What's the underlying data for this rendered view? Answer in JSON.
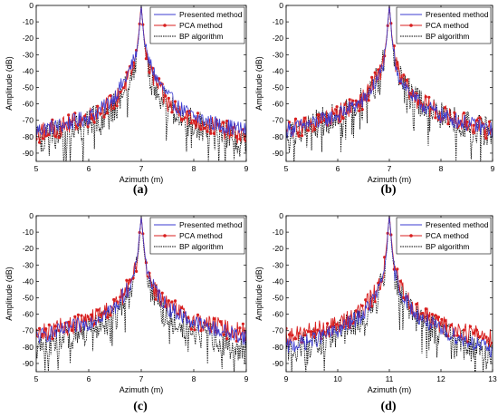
{
  "series_styles": {
    "presented": {
      "color": "#3b3bd1"
    },
    "pca": {
      "color": "#d81f1f"
    },
    "bp": {
      "color": "#000000"
    }
  },
  "chart_data": [
    {
      "panel_label": "(a)",
      "type": "line",
      "xlabel": "Azimuth (m)",
      "ylabel": "Amplitude (dB)",
      "xlim": [
        5,
        9
      ],
      "ylim": [
        -95,
        0
      ],
      "xticks": [
        5,
        6,
        7,
        8,
        9
      ],
      "yticks": [
        0,
        -10,
        -20,
        -30,
        -40,
        -50,
        -60,
        -70,
        -80,
        -90
      ],
      "legend_position": "top-right",
      "peak": 7,
      "series": [
        {
          "name": "Presented method",
          "key": "presented",
          "x": [
            5.0,
            5.5,
            6.0,
            6.3,
            6.5,
            6.7,
            6.8,
            6.9,
            6.95,
            7.0,
            7.05,
            7.1,
            7.2,
            7.3,
            7.5,
            7.7,
            8.0,
            8.5,
            9.0
          ],
          "y": [
            -76,
            -73,
            -68,
            -62,
            -55,
            -45,
            -38,
            -30,
            -20,
            0,
            -20,
            -30,
            -38,
            -45,
            -55,
            -62,
            -68,
            -73,
            -76
          ]
        },
        {
          "name": "PCA method",
          "key": "pca",
          "x": [
            5.0,
            5.5,
            6.0,
            6.5,
            6.8,
            6.9,
            6.95,
            7.0,
            7.05,
            7.1,
            7.2,
            7.5,
            8.0,
            8.5,
            9.0
          ],
          "y": [
            -78,
            -74,
            -68,
            -58,
            -42,
            -32,
            -18,
            0,
            -18,
            -32,
            -42,
            -60,
            -70,
            -75,
            -80
          ]
        },
        {
          "name": "BP algorithm",
          "key": "bp",
          "x": [
            5.0,
            5.5,
            6.0,
            6.5,
            6.8,
            6.9,
            6.95,
            7.0,
            7.05,
            7.1,
            7.2,
            7.5,
            8.0,
            8.5,
            9.0
          ],
          "y": [
            -82,
            -77,
            -72,
            -62,
            -46,
            -34,
            -20,
            0,
            -20,
            -34,
            -46,
            -62,
            -72,
            -78,
            -84
          ]
        }
      ]
    },
    {
      "panel_label": "(b)",
      "type": "line",
      "xlabel": "Azimuth (m)",
      "ylabel": "Amplitude (dB)",
      "xlim": [
        5,
        9
      ],
      "ylim": [
        -95,
        0
      ],
      "xticks": [
        5,
        6,
        7,
        8,
        9
      ],
      "yticks": [
        0,
        -10,
        -20,
        -30,
        -40,
        -50,
        -60,
        -70,
        -80,
        -90
      ],
      "legend_position": "top-right",
      "peak": 7,
      "series": [
        {
          "name": "Presented method",
          "key": "presented",
          "x": [
            5.0,
            5.5,
            6.0,
            6.5,
            6.8,
            6.9,
            6.95,
            7.0,
            7.05,
            7.1,
            7.2,
            7.5,
            8.0,
            8.5,
            9.0
          ],
          "y": [
            -76,
            -72,
            -67,
            -58,
            -44,
            -33,
            -20,
            0,
            -20,
            -33,
            -44,
            -58,
            -67,
            -72,
            -76
          ]
        },
        {
          "name": "PCA method",
          "key": "pca",
          "x": [
            5.0,
            5.5,
            6.0,
            6.5,
            6.8,
            6.9,
            6.95,
            7.0,
            7.05,
            7.1,
            7.2,
            7.5,
            8.0,
            8.5,
            9.0
          ],
          "y": [
            -76,
            -72,
            -66,
            -57,
            -43,
            -32,
            -19,
            0,
            -19,
            -32,
            -43,
            -57,
            -66,
            -72,
            -76
          ]
        },
        {
          "name": "BP algorithm",
          "key": "bp",
          "x": [
            5.0,
            5.5,
            6.0,
            6.5,
            6.8,
            6.9,
            6.95,
            7.0,
            7.05,
            7.1,
            7.2,
            7.5,
            8.0,
            8.5,
            9.0
          ],
          "y": [
            -78,
            -73,
            -67,
            -58,
            -44,
            -33,
            -20,
            0,
            -20,
            -33,
            -44,
            -58,
            -67,
            -73,
            -78
          ]
        }
      ]
    },
    {
      "panel_label": "(c)",
      "type": "line",
      "xlabel": "Azimuth (m)",
      "ylabel": "Amplitude (dB)",
      "xlim": [
        5,
        9
      ],
      "ylim": [
        -95,
        0
      ],
      "xticks": [
        5,
        6,
        7,
        8,
        9
      ],
      "yticks": [
        0,
        -10,
        -20,
        -30,
        -40,
        -50,
        -60,
        -70,
        -80,
        -90
      ],
      "legend_position": "top-right",
      "peak": 7,
      "series": [
        {
          "name": "Presented method",
          "key": "presented",
          "x": [
            5.0,
            5.5,
            6.0,
            6.5,
            6.8,
            6.9,
            6.95,
            7.0,
            7.05,
            7.1,
            7.2,
            7.5,
            8.0,
            8.5,
            9.0
          ],
          "y": [
            -74,
            -70,
            -65,
            -56,
            -42,
            -32,
            -18,
            0,
            -18,
            -32,
            -42,
            -56,
            -65,
            -70,
            -74
          ]
        },
        {
          "name": "PCA method",
          "key": "pca",
          "x": [
            5.0,
            5.5,
            6.0,
            6.5,
            6.8,
            6.9,
            6.95,
            7.0,
            7.05,
            7.1,
            7.2,
            7.5,
            8.0,
            8.5,
            9.0
          ],
          "y": [
            -72,
            -68,
            -64,
            -55,
            -42,
            -32,
            -18,
            0,
            -18,
            -32,
            -42,
            -55,
            -64,
            -68,
            -72
          ]
        },
        {
          "name": "BP algorithm",
          "key": "bp",
          "x": [
            5.0,
            5.5,
            6.0,
            6.5,
            6.8,
            6.9,
            6.95,
            7.0,
            7.05,
            7.1,
            7.2,
            7.5,
            8.0,
            8.5,
            9.0
          ],
          "y": [
            -80,
            -76,
            -70,
            -62,
            -47,
            -35,
            -21,
            0,
            -21,
            -35,
            -47,
            -62,
            -70,
            -76,
            -82
          ]
        }
      ]
    },
    {
      "panel_label": "(d)",
      "type": "line",
      "xlabel": "Azimuth (m)",
      "ylabel": "Amplitude (dB)",
      "xlim": [
        9,
        13
      ],
      "ylim": [
        -95,
        0
      ],
      "xticks": [
        9,
        10,
        11,
        12,
        13
      ],
      "yticks": [
        0,
        -10,
        -20,
        -30,
        -40,
        -50,
        -60,
        -70,
        -80,
        -90
      ],
      "legend_position": "top-right",
      "peak": 11,
      "series": [
        {
          "name": "Presented method",
          "key": "presented",
          "x": [
            9.0,
            9.5,
            10.0,
            10.5,
            10.8,
            10.9,
            10.95,
            11.0,
            11.05,
            11.1,
            11.2,
            11.5,
            12.0,
            12.5,
            13.0
          ],
          "y": [
            -80,
            -76,
            -70,
            -60,
            -45,
            -34,
            -20,
            0,
            -20,
            -34,
            -45,
            -60,
            -70,
            -76,
            -82
          ]
        },
        {
          "name": "PCA method",
          "key": "pca",
          "x": [
            9.0,
            9.5,
            10.0,
            10.5,
            10.8,
            10.9,
            10.95,
            11.0,
            11.05,
            11.1,
            11.2,
            11.5,
            12.0,
            12.5,
            13.0
          ],
          "y": [
            -74,
            -71,
            -67,
            -57,
            -43,
            -32,
            -18,
            0,
            -18,
            -32,
            -43,
            -57,
            -67,
            -71,
            -74
          ]
        },
        {
          "name": "BP algorithm",
          "key": "bp",
          "x": [
            9.0,
            9.5,
            10.0,
            10.5,
            10.8,
            10.9,
            10.95,
            11.0,
            11.05,
            11.1,
            11.2,
            11.5,
            12.0,
            12.5,
            13.0
          ],
          "y": [
            -82,
            -78,
            -72,
            -62,
            -47,
            -35,
            -21,
            0,
            -21,
            -35,
            -47,
            -62,
            -72,
            -78,
            -84
          ]
        }
      ]
    }
  ]
}
